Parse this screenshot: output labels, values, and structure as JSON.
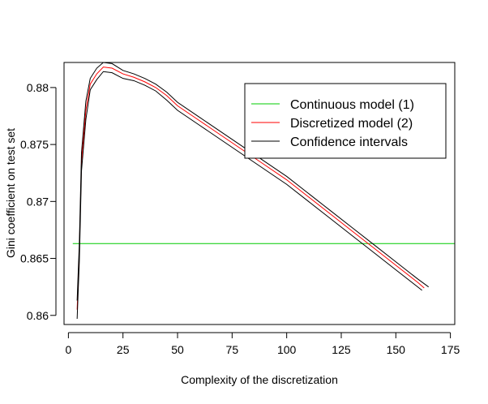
{
  "chart_data": {
    "type": "line",
    "title": "",
    "xlabel": "Complexity of the discretization",
    "ylabel": "Gini coefficient on test set",
    "xlim": [
      -2,
      177
    ],
    "ylim": [
      0.8592,
      0.8822
    ],
    "x_ticks": [
      0,
      25,
      50,
      75,
      100,
      125,
      150,
      175
    ],
    "y_ticks": [
      0.86,
      0.865,
      0.87,
      0.875,
      0.88
    ],
    "x_tick_labels": [
      "0",
      "25",
      "50",
      "75",
      "100",
      "125",
      "150",
      "175"
    ],
    "y_tick_labels": [
      "0.86",
      "0.865",
      "0.87",
      "0.875",
      "0.88"
    ],
    "grid": false,
    "legend_position": "top-right",
    "series": [
      {
        "name": "Continuous model (1)",
        "color": "#00cc00",
        "x": [
          2,
          177
        ],
        "y": [
          0.8663,
          0.8663
        ]
      },
      {
        "name": "Discretized model (2)",
        "color": "#ff0000",
        "x": [
          4,
          5,
          6,
          8,
          10,
          13,
          16,
          20,
          25,
          30,
          35,
          40,
          45,
          50,
          60,
          70,
          80,
          90,
          100,
          110,
          120,
          130,
          140,
          150,
          160,
          163
        ],
        "y": [
          0.8605,
          0.8655,
          0.8735,
          0.878,
          0.8803,
          0.8812,
          0.8818,
          0.8817,
          0.8812,
          0.8809,
          0.8805,
          0.88,
          0.8793,
          0.8784,
          0.8771,
          0.8758,
          0.8745,
          0.8732,
          0.8719,
          0.8704,
          0.8689,
          0.8674,
          0.8659,
          0.8644,
          0.8629,
          0.8624
        ]
      },
      {
        "name": "Confidence intervals",
        "color": "#000000",
        "x": [
          4,
          5,
          6,
          8,
          10,
          13,
          16,
          20,
          25,
          30,
          35,
          40,
          45,
          50,
          60,
          70,
          80,
          90,
          100,
          110,
          120,
          130,
          140,
          150,
          160,
          165
        ],
        "y": [
          0.8613,
          0.8663,
          0.8743,
          0.8788,
          0.8808,
          0.8817,
          0.8822,
          0.8821,
          0.8815,
          0.8812,
          0.8808,
          0.8803,
          0.8796,
          0.8787,
          0.8774,
          0.8761,
          0.8748,
          0.8735,
          0.8722,
          0.8707,
          0.8692,
          0.8677,
          0.8662,
          0.8647,
          0.8632,
          0.8625
        ]
      },
      {
        "name": "",
        "color": "#000000",
        "x": [
          4,
          5,
          6,
          8,
          10,
          13,
          16,
          20,
          25,
          30,
          35,
          40,
          45,
          50,
          60,
          70,
          80,
          90,
          100,
          110,
          120,
          130,
          140,
          150,
          160,
          162
        ],
        "y": [
          0.8597,
          0.8647,
          0.8727,
          0.8772,
          0.8798,
          0.8807,
          0.8814,
          0.8813,
          0.8808,
          0.8806,
          0.8802,
          0.8797,
          0.8789,
          0.878,
          0.8767,
          0.8754,
          0.8741,
          0.8728,
          0.8715,
          0.87,
          0.8685,
          0.867,
          0.8655,
          0.864,
          0.8625,
          0.8622
        ]
      }
    ],
    "legend": [
      {
        "label": "Continuous model (1)",
        "color": "#00cc00"
      },
      {
        "label": "Discretized model (2)",
        "color": "#ff0000"
      },
      {
        "label": "Confidence intervals",
        "color": "#000000"
      }
    ]
  }
}
